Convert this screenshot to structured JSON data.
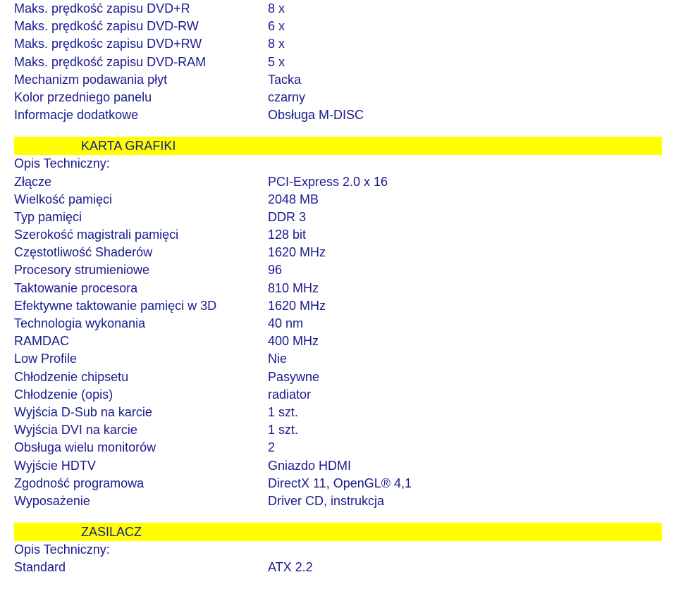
{
  "colors": {
    "text": "#1a1a8f",
    "highlight_bg": "#ffff00",
    "page_bg": "#ffffff"
  },
  "block1": {
    "rows": [
      {
        "label": "Maks. prędkość zapisu DVD+R",
        "value": "8 x"
      },
      {
        "label": "Maks. prędkość zapisu DVD-RW",
        "value": "6 x"
      },
      {
        "label": "Maks. prędkośc zapisu DVD+RW",
        "value": "8 x"
      },
      {
        "label": "Maks. prędkość zapisu DVD-RAM",
        "value": "5 x"
      },
      {
        "label": "Mechanizm podawania płyt",
        "value": "Tacka"
      },
      {
        "label": "Kolor przedniego panelu",
        "value": "czarny"
      },
      {
        "label": "Informacje dodatkowe",
        "value": "Obsługa M-DISC"
      }
    ]
  },
  "section_grafiki": {
    "title": "KARTA GRAFIKI",
    "sub": "Opis Techniczny:",
    "rows": [
      {
        "label": "Złącze",
        "value": "PCI-Express 2.0 x 16"
      },
      {
        "label": "Wielkość pamięci",
        "value": "2048 MB"
      },
      {
        "label": "Typ pamięci",
        "value": "DDR 3"
      },
      {
        "label": "Szerokość magistrali pamięci",
        "value": "128 bit"
      },
      {
        "label": "Częstotliwość Shaderów",
        "value": "1620 MHz"
      },
      {
        "label": "Procesory strumieniowe",
        "value": "96"
      },
      {
        "label": "Taktowanie procesora",
        "value": "810 MHz"
      },
      {
        "label": "Efektywne taktowanie pamięci w 3D",
        "value": "1620 MHz"
      },
      {
        "label": "Technologia wykonania",
        "value": "40 nm"
      },
      {
        "label": "RAMDAC",
        "value": "400 MHz"
      },
      {
        "label": "Low Profile",
        "value": "Nie"
      },
      {
        "label": "Chłodzenie chipsetu",
        "value": "Pasywne"
      },
      {
        "label": "Chłodzenie (opis)",
        "value": "radiator"
      },
      {
        "label": "Wyjścia D-Sub na karcie",
        "value": "1 szt."
      },
      {
        "label": "Wyjścia DVI na karcie",
        "value": "1 szt."
      },
      {
        "label": "Obsługa wielu monitorów",
        "value": "2"
      },
      {
        "label": "Wyjście HDTV",
        "value": "Gniazdo HDMI"
      },
      {
        "label": "Zgodność programowa",
        "value": "DirectX 11, OpenGL® 4,1"
      },
      {
        "label": "Wyposażenie",
        "value": "Driver CD, instrukcja"
      }
    ]
  },
  "section_zasilacz": {
    "title": "ZASILACZ",
    "sub": "Opis Techniczny:",
    "rows": [
      {
        "label": "Standard",
        "value": "ATX 2.2"
      }
    ]
  }
}
